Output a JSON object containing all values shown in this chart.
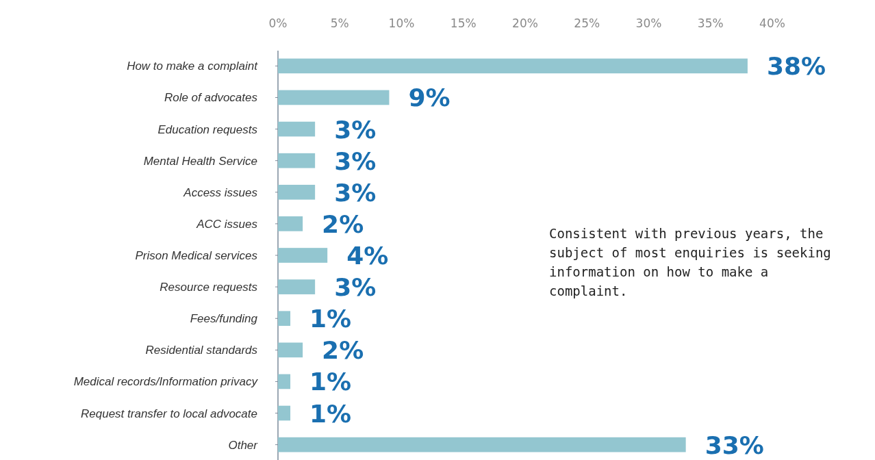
{
  "chart_data": {
    "type": "bar",
    "orientation": "horizontal",
    "categories": [
      "How to make a complaint",
      "Role of advocates",
      "Education requests",
      "Mental Health Service",
      "Access issues",
      "ACC issues",
      "Prison Medical services",
      "Resource requests",
      "Fees/funding",
      "Residential standards",
      "Medical records/Information privacy",
      "Request transfer to local advocate",
      "Other"
    ],
    "values": [
      38,
      9,
      3,
      3,
      3,
      2,
      4,
      3,
      1,
      2,
      1,
      1,
      33
    ],
    "value_labels": [
      "38%",
      "9%",
      "3%",
      "3%",
      "3%",
      "2%",
      "4%",
      "3%",
      "1%",
      "2%",
      "1%",
      "1%",
      "33%"
    ],
    "color": "#93c6d0",
    "xlim": [
      0,
      40
    ],
    "xticks": [
      {
        "value": 0,
        "label": "0%"
      },
      {
        "value": 5,
        "label": "5%"
      },
      {
        "value": 10,
        "label": "10%"
      },
      {
        "value": 15,
        "label": "15%"
      },
      {
        "value": 20,
        "label": "20%"
      },
      {
        "value": 25,
        "label": "25%"
      },
      {
        "value": 30,
        "label": "30%"
      },
      {
        "value": 35,
        "label": "35%"
      },
      {
        "value": 40,
        "label": "40%"
      }
    ],
    "annotations": [
      "Consistent with previous years, the subject of most enquiries is seeking information on how to make a complaint."
    ]
  }
}
